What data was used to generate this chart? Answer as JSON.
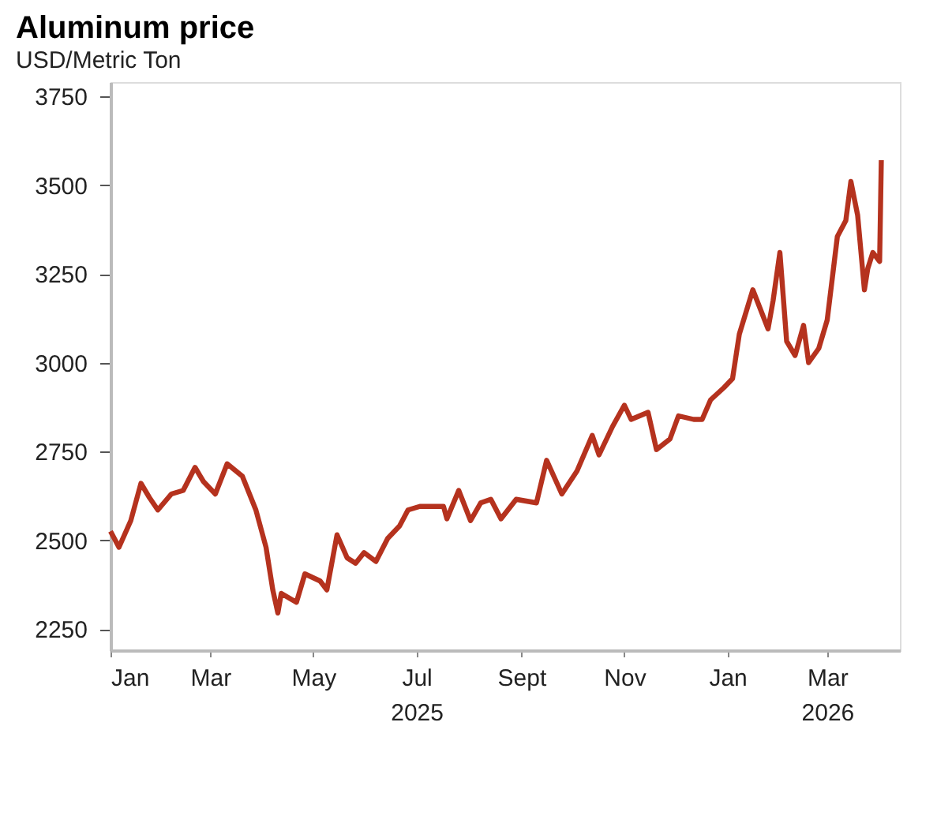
{
  "chart_data": {
    "type": "line",
    "title": "Aluminum price",
    "subtitle": "USD/Metric Ton",
    "x": [
      "2025-01-01",
      "2025-01-06",
      "2025-01-13",
      "2025-01-19",
      "2025-01-24",
      "2025-01-29",
      "2025-02-06",
      "2025-02-13",
      "2025-02-20",
      "2025-02-25",
      "2025-03-04",
      "2025-03-11",
      "2025-03-20",
      "2025-03-28",
      "2025-04-03",
      "2025-04-07",
      "2025-04-10",
      "2025-04-12",
      "2025-04-21",
      "2025-04-26",
      "2025-05-05",
      "2025-05-09",
      "2025-05-15",
      "2025-05-21",
      "2025-05-26",
      "2025-05-31",
      "2025-06-07",
      "2025-06-14",
      "2025-06-21",
      "2025-06-26",
      "2025-07-03",
      "2025-07-10",
      "2025-07-17",
      "2025-07-19",
      "2025-07-26",
      "2025-08-02",
      "2025-08-08",
      "2025-08-14",
      "2025-08-20",
      "2025-08-29",
      "2025-09-10",
      "2025-09-16",
      "2025-09-25",
      "2025-10-04",
      "2025-10-13",
      "2025-10-17",
      "2025-10-25",
      "2025-11-01",
      "2025-11-05",
      "2025-11-15",
      "2025-11-20",
      "2025-11-28",
      "2025-12-03",
      "2025-12-12",
      "2025-12-17",
      "2025-12-22",
      "2025-12-30",
      "2026-01-04",
      "2026-01-08",
      "2026-01-16",
      "2026-01-25",
      "2026-01-28",
      "2026-02-01",
      "2026-02-05",
      "2026-02-10",
      "2026-02-15",
      "2026-02-18",
      "2026-02-24",
      "2026-03-01",
      "2026-03-07",
      "2026-03-12",
      "2026-03-15",
      "2026-03-19",
      "2026-03-23",
      "2026-03-25",
      "2026-03-28",
      "2026-04-01",
      "2026-04-02"
    ],
    "series": [
      {
        "color": "#b5321e",
        "values": [
          2525,
          2480,
          2555,
          2660,
          2620,
          2585,
          2630,
          2640,
          2705,
          2665,
          2630,
          2715,
          2680,
          2585,
          2480,
          2360,
          2295,
          2350,
          2325,
          2405,
          2385,
          2360,
          2515,
          2450,
          2435,
          2465,
          2440,
          2505,
          2540,
          2585,
          2595,
          2595,
          2595,
          2560,
          2640,
          2555,
          2605,
          2615,
          2560,
          2615,
          2605,
          2725,
          2630,
          2695,
          2795,
          2740,
          2820,
          2880,
          2840,
          2860,
          2755,
          2785,
          2850,
          2840,
          2840,
          2895,
          2930,
          2955,
          3080,
          3205,
          3095,
          3175,
          3310,
          3060,
          3020,
          3105,
          3000,
          3040,
          3120,
          3355,
          3400,
          3510,
          3415,
          3205,
          3265,
          3310,
          3285,
          3570
        ]
      }
    ],
    "xlim": [
      "2025-01-01",
      "2026-04-13"
    ],
    "xticks": [
      {
        "value": "2025-01-01",
        "label": "Jan"
      },
      {
        "value": "2025-03-01",
        "label": "Mar"
      },
      {
        "value": "2025-05-01",
        "label": "May"
      },
      {
        "value": "2025-07-01",
        "label": "Jul\n2025"
      },
      {
        "value": "2025-09-01",
        "label": "Sept"
      },
      {
        "value": "2025-11-01",
        "label": "Nov"
      },
      {
        "value": "2026-01-01",
        "label": "Jan"
      },
      {
        "value": "2026-03-01",
        "label": "Mar\n2026"
      }
    ],
    "ylim": [
      2190,
      3790
    ],
    "yticks": [
      2250,
      2500,
      2750,
      3000,
      3250,
      3500,
      3750
    ],
    "grid": false,
    "legend": false,
    "marker": "none",
    "line_style": "solid"
  }
}
